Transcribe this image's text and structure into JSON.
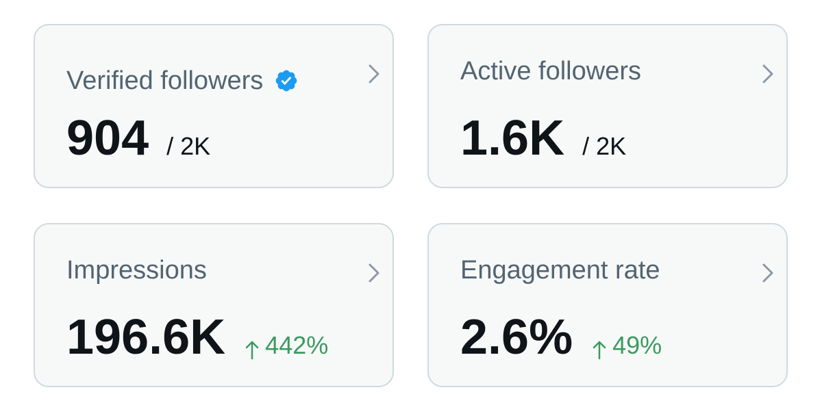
{
  "cards": [
    {
      "title": "Verified followers",
      "value": "904",
      "suffix": "/ 2K",
      "verified_icon": "verified-badge-icon",
      "chevron_icon": "chevron-right-icon"
    },
    {
      "title": "Active followers",
      "value": "1.6K",
      "suffix": "/ 2K",
      "chevron_icon": "chevron-right-icon"
    },
    {
      "title": "Impressions",
      "value": "196.6K",
      "change": "442%",
      "change_icon": "arrow-up-icon",
      "chevron_icon": "chevron-right-icon"
    },
    {
      "title": "Engagement rate",
      "value": "2.6%",
      "change": "49%",
      "change_icon": "arrow-up-icon",
      "chevron_icon": "chevron-right-icon"
    }
  ],
  "colors": {
    "verified_badge": "#1d9bf0",
    "positive_change": "#3a9a5e",
    "title_text": "#536471",
    "value_text": "#0f1419",
    "card_background": "#f7f9f9",
    "card_border": "#cfd9de"
  }
}
